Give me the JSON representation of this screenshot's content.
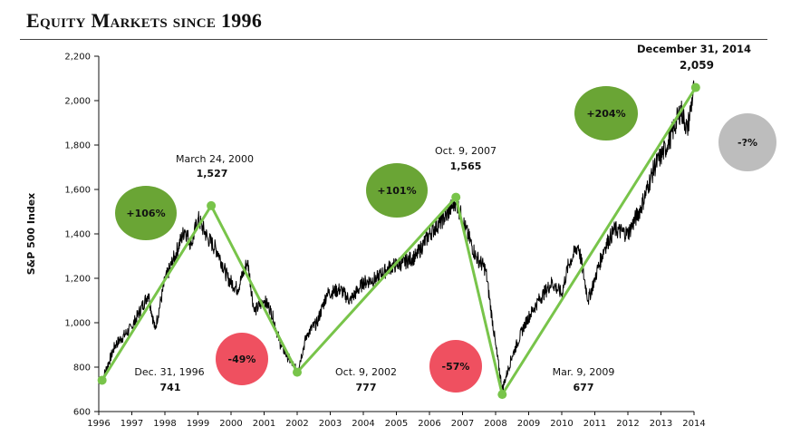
{
  "header": {
    "title": "Equity Markets since 1996"
  },
  "colors": {
    "gain_bubble": "#6aa535",
    "loss_bubble": "#ef5060",
    "unknown_bubble": "#bdbdbd",
    "trend_line": "#78c44a",
    "price_line": "#000000"
  },
  "chart_data": {
    "type": "line",
    "title": "Equity Markets since 1996",
    "xlabel": "",
    "ylabel": "S&P 500 Index",
    "xlim": [
      1996,
      2014
    ],
    "ylim": [
      600,
      2200
    ],
    "grid": false,
    "x_ticks": [
      "1996",
      "1997",
      "1998",
      "1999",
      "2000",
      "2001",
      "2002",
      "2003",
      "2004",
      "2005",
      "2006",
      "2007",
      "2008",
      "2009",
      "2010",
      "2011",
      "2012",
      "2013",
      "2014"
    ],
    "y_ticks": [
      {
        "value": 600,
        "label": "600"
      },
      {
        "value": 800,
        "label": "800"
      },
      {
        "value": 1000,
        "label": "1,000"
      },
      {
        "value": 1200,
        "label": "1,200"
      },
      {
        "value": 1400,
        "label": "1,400"
      },
      {
        "value": 1600,
        "label": "1,600"
      },
      {
        "value": 1800,
        "label": "1,800"
      },
      {
        "value": 2000,
        "label": "2,000"
      },
      {
        "value": 2200,
        "label": "2,200"
      }
    ],
    "series": [
      {
        "name": "S&P 500 Index",
        "style": "daily price line",
        "x": [
          1996.1,
          1996.5,
          1997.0,
          1997.5,
          1997.7,
          1998.0,
          1998.3,
          1998.6,
          1998.8,
          1999.0,
          1999.3,
          1999.6,
          1999.9,
          2000.2,
          2000.5,
          2000.7,
          2001.0,
          2001.2,
          2001.5,
          2001.7,
          2002.0,
          2002.3,
          2002.6,
          2002.9,
          2003.3,
          2003.6,
          2004.0,
          2004.4,
          2004.8,
          2005.2,
          2005.6,
          2006.0,
          2006.3,
          2006.5,
          2006.8,
          2007.1,
          2007.4,
          2007.7,
          2008.0,
          2008.2,
          2008.5,
          2008.9,
          2009.3,
          2009.7,
          2010.0,
          2010.2,
          2010.5,
          2010.8,
          2011.0,
          2011.3,
          2011.6,
          2012.0,
          2012.4,
          2012.8,
          2013.2,
          2013.6,
          2013.8,
          2014.0
        ],
        "y": [
          741,
          900,
          980,
          1130,
          970,
          1190,
          1300,
          1420,
          1350,
          1470,
          1380,
          1320,
          1200,
          1150,
          1280,
          1050,
          1100,
          1060,
          900,
          850,
          780,
          950,
          1000,
          1130,
          1150,
          1100,
          1180,
          1200,
          1250,
          1270,
          1300,
          1400,
          1450,
          1480,
          1550,
          1420,
          1300,
          1240,
          900,
          700,
          850,
          1000,
          1100,
          1180,
          1130,
          1260,
          1350,
          1100,
          1200,
          1340,
          1420,
          1400,
          1520,
          1700,
          1800,
          1960,
          1870,
          2059
        ]
      },
      {
        "name": "Peak-to-trough trend",
        "style": "green connecting line with dots",
        "x": [
          1996.1,
          1999.4,
          2002.0,
          2006.8,
          2008.2,
          2014.05
        ],
        "y": [
          741,
          1527,
          777,
          1565,
          677,
          2059
        ]
      }
    ],
    "annotations": [
      {
        "date": "Dec. 31, 1996",
        "value": "741"
      },
      {
        "date": "March 24, 2000",
        "value": "1,527"
      },
      {
        "date": "Oct. 9, 2002",
        "value": "777"
      },
      {
        "date": "Oct. 9, 2007",
        "value": "1,565"
      },
      {
        "date": "Mar. 9, 2009",
        "value": "677"
      },
      {
        "date": "December 31, 2014",
        "value": "2,059"
      }
    ],
    "bubbles": [
      {
        "label": "+106%",
        "kind": "gain"
      },
      {
        "label": "-49%",
        "kind": "loss"
      },
      {
        "label": "+101%",
        "kind": "gain"
      },
      {
        "label": "-57%",
        "kind": "loss"
      },
      {
        "label": "+204%",
        "kind": "gain"
      },
      {
        "label": "-?%",
        "kind": "unknown"
      }
    ]
  }
}
